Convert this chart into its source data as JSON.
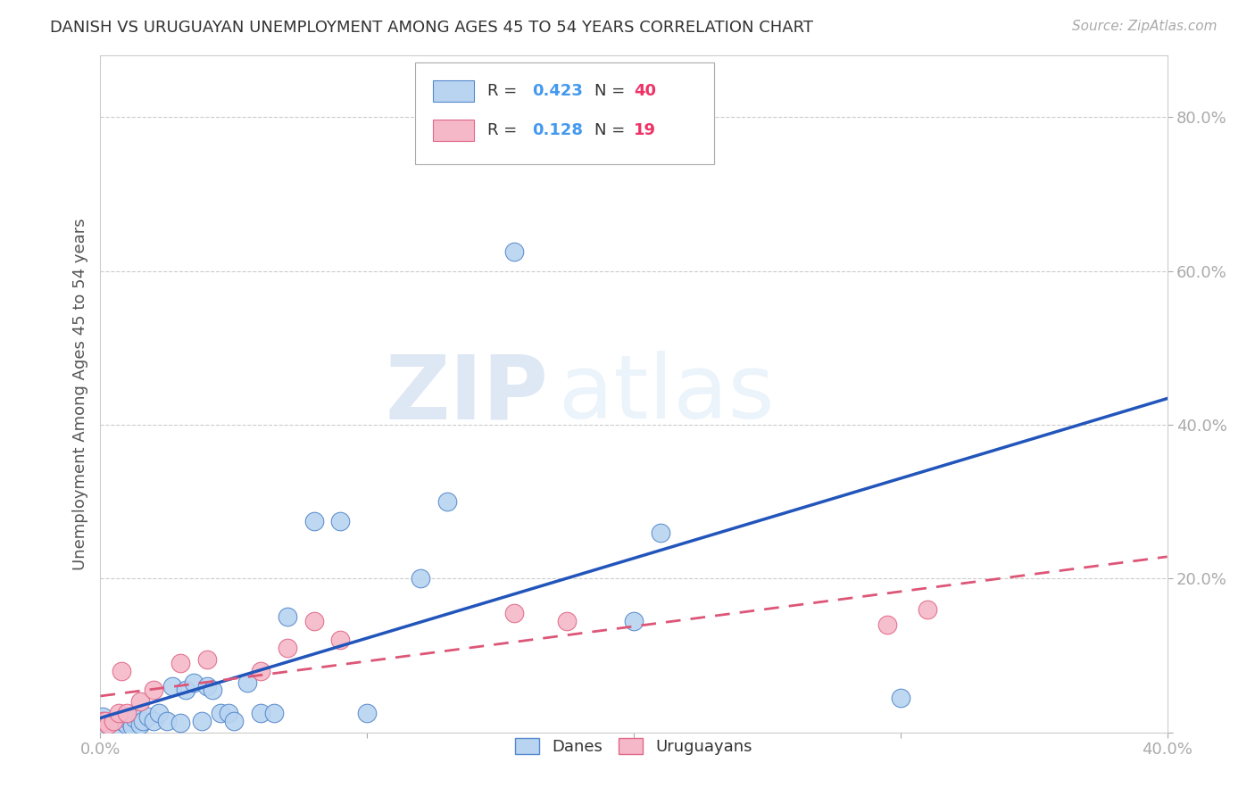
{
  "title": "DANISH VS URUGUAYAN UNEMPLOYMENT AMONG AGES 45 TO 54 YEARS CORRELATION CHART",
  "source": "Source: ZipAtlas.com",
  "ylabel": "Unemployment Among Ages 45 to 54 years",
  "xlim": [
    0.0,
    0.4
  ],
  "ylim": [
    0.0,
    0.88
  ],
  "xticks": [
    0.0,
    0.1,
    0.2,
    0.3,
    0.4
  ],
  "xtick_labels": [
    "0.0%",
    "",
    "",
    "",
    "40.0%"
  ],
  "yticks": [
    0.0,
    0.2,
    0.4,
    0.6,
    0.8
  ],
  "ytick_labels": [
    "",
    "20.0%",
    "40.0%",
    "60.0%",
    "80.0%"
  ],
  "danes_color": "#b8d4f0",
  "danes_edge_color": "#5588cc",
  "uruguayans_color": "#f5b8c8",
  "uruguayans_edge_color": "#e06888",
  "line_danes_color": "#2255bb",
  "line_uruguayans_color": "#dd5577",
  "R_danes": 0.423,
  "N_danes": 40,
  "R_uruguayans": 0.128,
  "N_uruguayans": 19,
  "legend_R_color": "#4499ee",
  "legend_N_color": "#ee3366",
  "watermark_zip": "ZIP",
  "watermark_atlas": "atlas",
  "danes_x": [
    0.001,
    0.001,
    0.003,
    0.005,
    0.007,
    0.008,
    0.009,
    0.01,
    0.011,
    0.012,
    0.013,
    0.015,
    0.016,
    0.018,
    0.02,
    0.022,
    0.025,
    0.027,
    0.03,
    0.032,
    0.035,
    0.038,
    0.04,
    0.042,
    0.045,
    0.048,
    0.05,
    0.055,
    0.06,
    0.065,
    0.07,
    0.08,
    0.09,
    0.1,
    0.12,
    0.13,
    0.155,
    0.2,
    0.21,
    0.3
  ],
  "danes_y": [
    0.01,
    0.02,
    0.01,
    0.015,
    0.008,
    0.015,
    0.02,
    0.01,
    0.015,
    0.008,
    0.018,
    0.01,
    0.015,
    0.02,
    0.015,
    0.025,
    0.015,
    0.06,
    0.012,
    0.055,
    0.065,
    0.015,
    0.06,
    0.055,
    0.025,
    0.025,
    0.015,
    0.065,
    0.025,
    0.025,
    0.15,
    0.275,
    0.275,
    0.025,
    0.2,
    0.3,
    0.625,
    0.145,
    0.26,
    0.045
  ],
  "uruguayans_x": [
    0.001,
    0.002,
    0.003,
    0.005,
    0.007,
    0.008,
    0.01,
    0.015,
    0.02,
    0.03,
    0.04,
    0.06,
    0.07,
    0.08,
    0.09,
    0.155,
    0.175,
    0.295,
    0.31
  ],
  "uruguayans_y": [
    0.015,
    0.015,
    0.01,
    0.015,
    0.025,
    0.08,
    0.025,
    0.04,
    0.055,
    0.09,
    0.095,
    0.08,
    0.11,
    0.145,
    0.12,
    0.155,
    0.145,
    0.14,
    0.16
  ]
}
